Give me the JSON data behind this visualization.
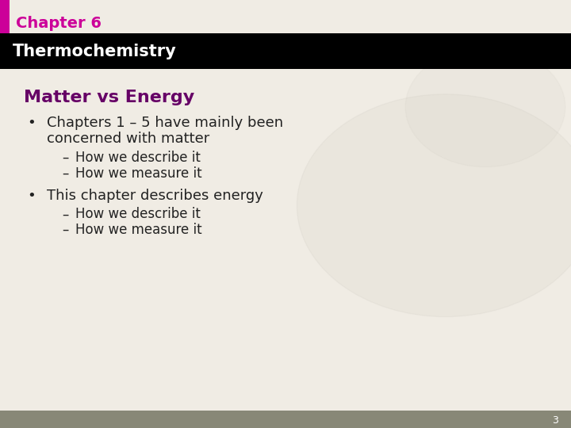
{
  "chapter_label": "Chapter 6",
  "chapter_label_color": "#cc0099",
  "title_bar_text": "Thermochemistry",
  "title_bar_bg": "#000000",
  "title_bar_text_color": "#ffffff",
  "slide_bg": "#f0ece4",
  "accent_bar_color": "#cc0099",
  "heading": "Matter vs Energy",
  "heading_color": "#660066",
  "bullet1_line1": "Chapters 1 – 5 have mainly been",
  "bullet1_line2": "concerned with matter",
  "sub1a": "How we describe it",
  "sub1b": "How we measure it",
  "bullet2": "This chapter describes energy",
  "sub2a": "How we describe it",
  "sub2b": "How we measure it",
  "body_text_color": "#222222",
  "footer_bar_color": "#888877",
  "page_number": "3",
  "font_family": "DejaVu Sans"
}
